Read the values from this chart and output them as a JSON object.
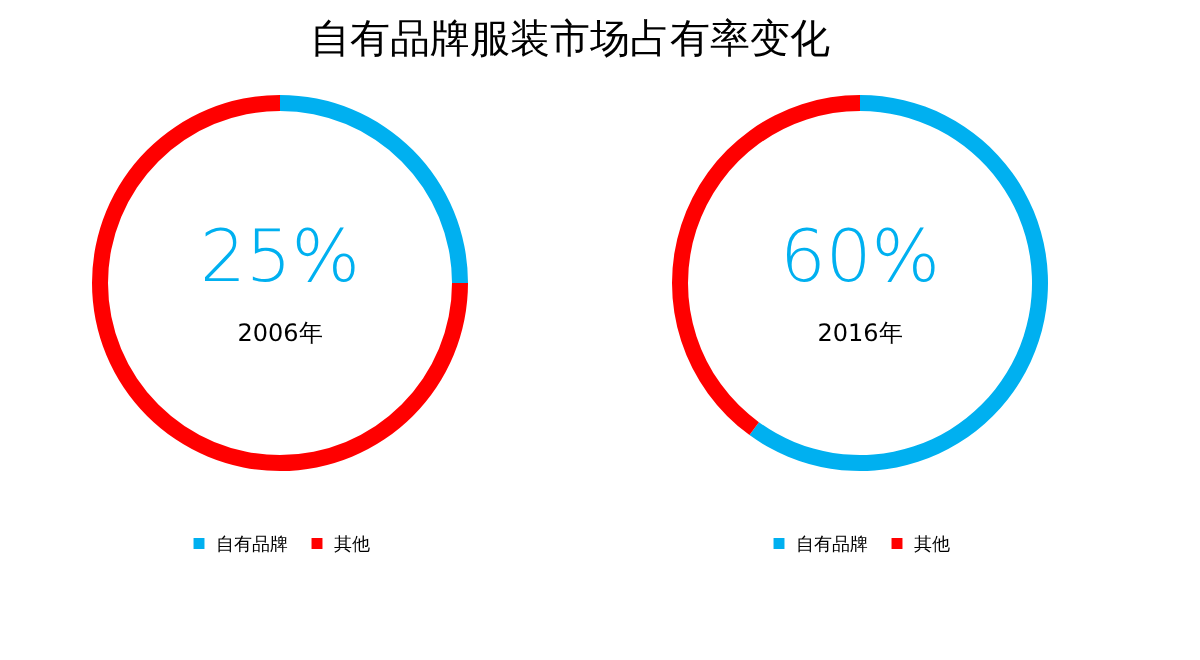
{
  "chart_data": [
    {
      "type": "donut",
      "title": "自有品牌服装市场占有率变化",
      "subtitle": "2006年",
      "categories": [
        "自有品牌",
        "其他"
      ],
      "values": [
        25,
        75
      ],
      "colors": [
        "#00b0f0",
        "#ff0000"
      ],
      "value_labels": [
        "25%",
        null
      ],
      "legend": "bottom"
    },
    {
      "type": "donut",
      "subtitle": "2016年",
      "categories": [
        "自有品牌",
        "其他"
      ],
      "values": [
        60,
        40
      ],
      "colors": [
        "#00b0f0",
        "#ff0000"
      ],
      "value_labels": [
        "60%",
        null
      ],
      "legend": "bottom"
    }
  ]
}
